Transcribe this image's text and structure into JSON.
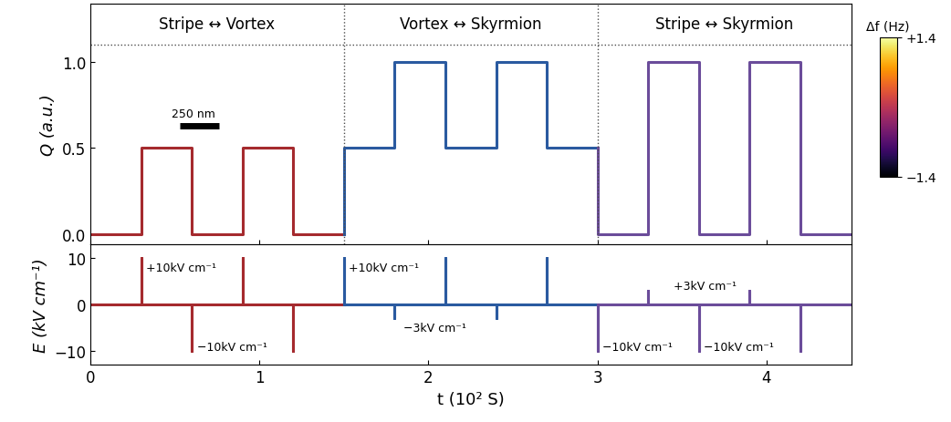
{
  "chart_data": [
    {
      "type": "line",
      "ylabel": "Q (a.u.)",
      "tick_labels": "y",
      "xlim": [
        0,
        4.5
      ],
      "xticks": [
        0,
        1,
        2,
        3,
        4
      ],
      "ylim": [
        -0.06,
        1.34
      ],
      "yticks": [
        {
          "value": 0,
          "label": "0.0"
        },
        {
          "value": 0.5,
          "label": "0.5"
        },
        {
          "value": 1,
          "label": "1.0"
        }
      ],
      "sections": [
        {
          "label": "Stripe ↔ Vortex",
          "range": [
            0,
            1.5
          ]
        },
        {
          "label": "Vortex ↔ Skyrmion",
          "range": [
            1.5,
            3.0
          ]
        },
        {
          "label": "Stripe ↔ Skyrmion",
          "range": [
            3.0,
            4.5
          ]
        }
      ],
      "section_line": 1.1,
      "annotations": [
        {
          "text": "250 nm",
          "x": 0.48,
          "y": 0.7
        }
      ],
      "colorbar": {
        "label": "Δf (Hz)",
        "range": [
          -1.4,
          1.4
        ],
        "ticks": [
          {
            "value": 1.4,
            "label": "+1.4"
          },
          {
            "value": -1.4,
            "label": "−1.4"
          }
        ]
      },
      "series": [
        {
          "color": "#a52a2e",
          "x": [
            0,
            0.3,
            0.3,
            0.6,
            0.6,
            0.9,
            0.9,
            1.2,
            1.2,
            1.5
          ],
          "values": [
            0,
            0,
            0.5,
            0.5,
            0,
            0,
            0.5,
            0.5,
            0,
            0
          ]
        },
        {
          "color": "#2a5aa0",
          "x": [
            1.5,
            1.5,
            1.8,
            1.8,
            2.1,
            2.1,
            2.4,
            2.4,
            2.7,
            2.7,
            3.0
          ],
          "values": [
            0,
            0.5,
            0.5,
            1,
            1,
            0.5,
            0.5,
            1,
            1,
            0.5,
            0.5
          ]
        },
        {
          "color": "#6b4c9a",
          "x": [
            3.0,
            3.0,
            3.3,
            3.3,
            3.6,
            3.6,
            3.9,
            3.9,
            4.2,
            4.2,
            4.5
          ],
          "values": [
            0.5,
            0,
            0,
            1,
            1,
            0,
            0,
            1,
            1,
            0,
            0
          ]
        }
      ]
    },
    {
      "type": "line",
      "ylabel": "E (kV cm⁻¹)",
      "xlabel": "t (10² S)",
      "xlim": [
        0,
        4.5
      ],
      "xticks": [
        0,
        1,
        2,
        3,
        4
      ],
      "ylim": [
        -13,
        13
      ],
      "yticks": [
        {
          "value": -10,
          "label": "−10"
        },
        0,
        10
      ],
      "annotations": [
        {
          "text": "+10kV cm⁻¹",
          "x": 0.33,
          "y": 8
        },
        {
          "text": "−10kV cm⁻¹",
          "x": 0.63,
          "y": -9
        },
        {
          "text": "+10kV cm⁻¹",
          "x": 1.53,
          "y": 8
        },
        {
          "text": "−3kV cm⁻¹",
          "x": 1.85,
          "y": -5
        },
        {
          "text": "−10kV cm⁻¹",
          "x": 3.03,
          "y": -9
        },
        {
          "text": "+3kV cm⁻¹",
          "x": 3.45,
          "y": 4
        },
        {
          "text": "−10kV cm⁻¹",
          "x": 3.63,
          "y": -9
        }
      ],
      "series": [
        {
          "color": "#a52a2e",
          "x": [
            0,
            0.3,
            0.3,
            0.3,
            0.6,
            0.6,
            0.6,
            0.9,
            0.9,
            0.9,
            1.2,
            1.2,
            1.2,
            1.5
          ],
          "values": [
            0,
            0,
            10,
            0,
            0,
            -10,
            0,
            0,
            10,
            0,
            0,
            -10,
            0,
            0
          ]
        },
        {
          "color": "#2a5aa0",
          "x": [
            1.5,
            1.5,
            1.5,
            1.8,
            1.8,
            1.8,
            2.1,
            2.1,
            2.1,
            2.4,
            2.4,
            2.4,
            2.7,
            2.7,
            2.7,
            3.0
          ],
          "values": [
            0,
            10,
            0,
            0,
            -3,
            0,
            0,
            10,
            0,
            0,
            -3,
            0,
            0,
            10,
            0,
            0
          ]
        },
        {
          "color": "#6b4c9a",
          "x": [
            3.0,
            3.0,
            3.0,
            3.3,
            3.3,
            3.3,
            3.6,
            3.6,
            3.6,
            3.9,
            3.9,
            3.9,
            4.2,
            4.2,
            4.2,
            4.5
          ],
          "values": [
            0,
            -10,
            0,
            0,
            3,
            0,
            0,
            -10,
            0,
            0,
            3,
            0,
            0,
            -10,
            0,
            0
          ]
        }
      ]
    }
  ]
}
